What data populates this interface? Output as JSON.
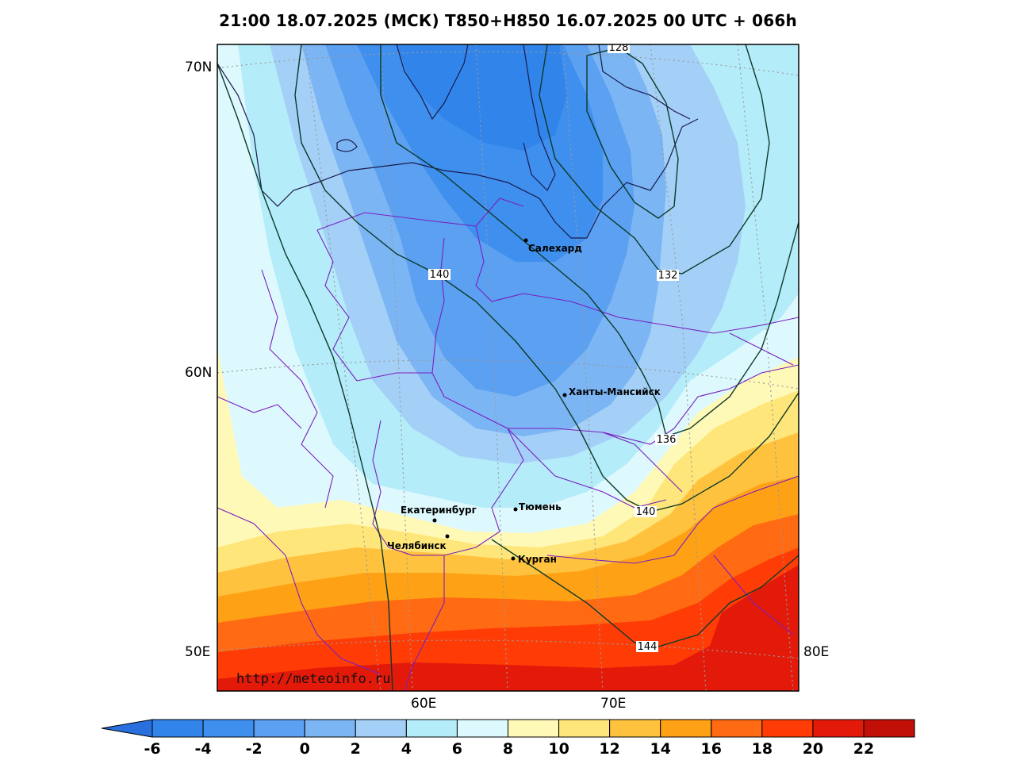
{
  "title": "21:00 18.07.2025 (МСК) T850+H850 16.07.2025 00 UTC + 066h",
  "axes": {
    "lat_labels": [
      "70N",
      "60N"
    ],
    "lon_labels_bottom": [
      "60E",
      "70E"
    ],
    "corner_left": "50E",
    "corner_right": "80E"
  },
  "cities": [
    {
      "name": "Салехард"
    },
    {
      "name": "Ханты-Мансийск"
    },
    {
      "name": "Екатеринбург"
    },
    {
      "name": "Тюмень"
    },
    {
      "name": "Челябинск"
    },
    {
      "name": "Курган"
    }
  ],
  "isolines": [
    "128",
    "132",
    "140",
    "136",
    "140",
    "144"
  ],
  "watermark": "http://meteoinfo.ru",
  "colorbar": {
    "ticks": [
      "-6",
      "-4",
      "-2",
      "0",
      "2",
      "4",
      "6",
      "8",
      "10",
      "12",
      "14",
      "16",
      "18",
      "20",
      "22"
    ],
    "colors": [
      "#3184ea",
      "#3f8fee",
      "#5ba0f1",
      "#7bb5f4",
      "#a4d0f8",
      "#b5ecf9",
      "#def9fd",
      "#fff9b8",
      "#ffe67a",
      "#ffc23e",
      "#ffa114",
      "#ff6a12",
      "#ff3c06",
      "#e31a0a",
      "#c11008"
    ],
    "low_color": "#2a6fde",
    "high_color": "#b30a05"
  }
}
